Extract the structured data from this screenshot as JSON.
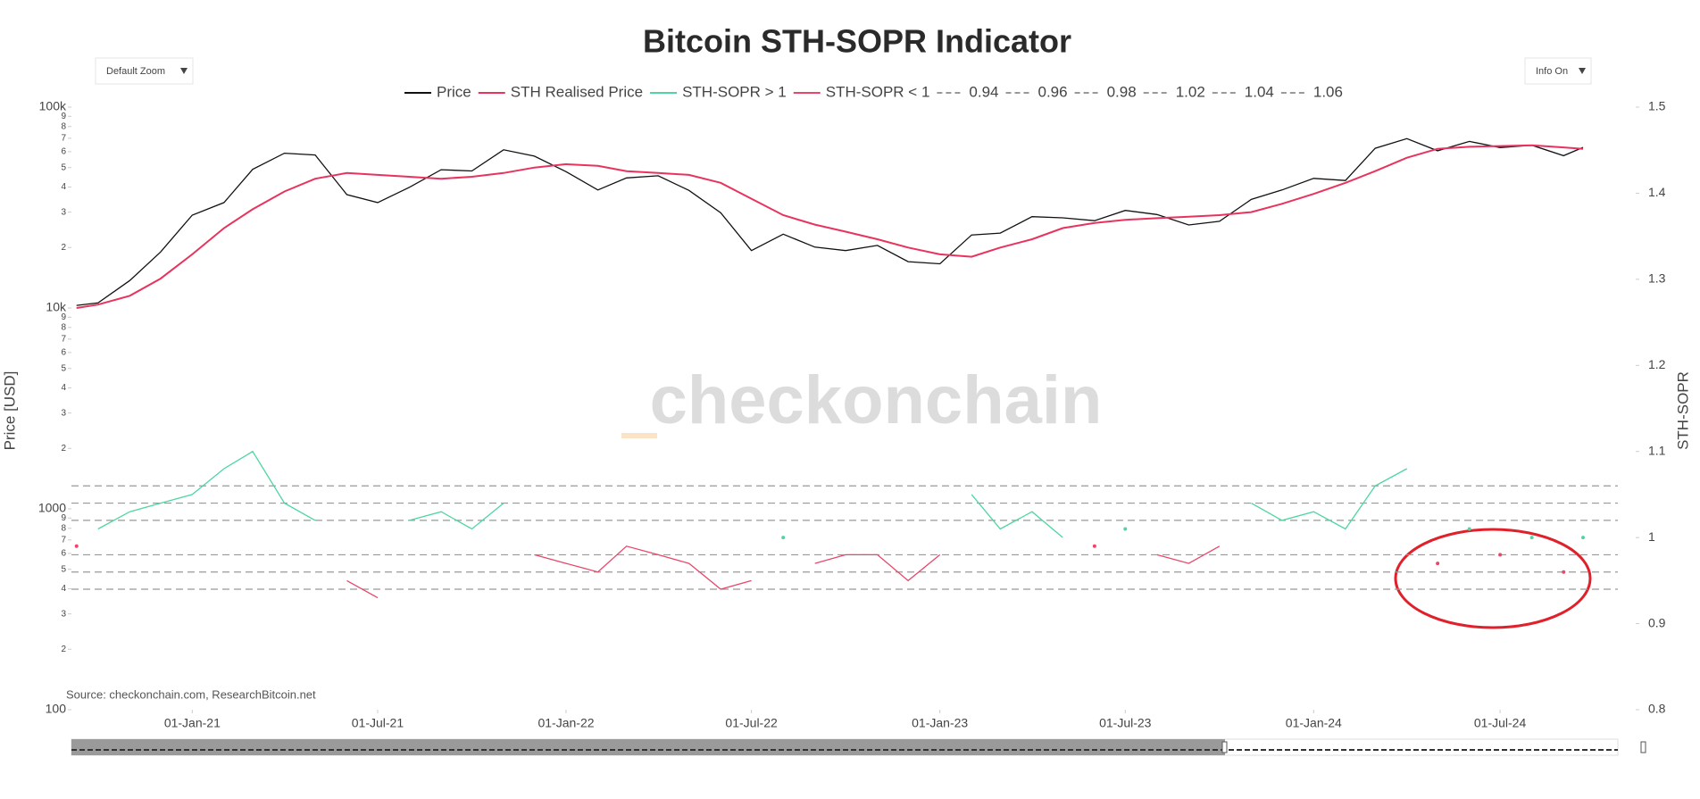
{
  "chart_data": {
    "type": "line",
    "title": "Bitcoin STH-SOPR Indicator",
    "yaxis_title": "Price [USD]",
    "y2axis_title": "STH-SOPR",
    "ylog": true,
    "xlim": [
      "2020-09-05",
      "2024-10-24"
    ],
    "xticks": [
      {
        "value": "2021-01-01",
        "label": "01-Jan-21"
      },
      {
        "value": "2021-07-01",
        "label": "01-Jul-21"
      },
      {
        "value": "2022-01-01",
        "label": "01-Jan-22"
      },
      {
        "value": "2022-07-01",
        "label": "01-Jul-22"
      },
      {
        "value": "2023-01-01",
        "label": "01-Jan-23"
      },
      {
        "value": "2023-07-01",
        "label": "01-Jul-23"
      },
      {
        "value": "2024-01-01",
        "label": "01-Jan-24"
      },
      {
        "value": "2024-07-01",
        "label": "01-Jul-24"
      }
    ],
    "ylim": [
      100,
      100000
    ],
    "yticks": [
      100,
      {
        "value": 200,
        "label": "2"
      },
      {
        "value": 300,
        "label": "3"
      },
      {
        "value": 400,
        "label": "4"
      },
      {
        "value": 500,
        "label": "5"
      },
      {
        "value": 600,
        "label": "6"
      },
      {
        "value": 700,
        "label": "7"
      },
      {
        "value": 800,
        "label": "8"
      },
      {
        "value": 900,
        "label": "9"
      },
      1000,
      {
        "value": 2000,
        "label": "2"
      },
      {
        "value": 3000,
        "label": "3"
      },
      {
        "value": 4000,
        "label": "4"
      },
      {
        "value": 5000,
        "label": "5"
      },
      {
        "value": 6000,
        "label": "6"
      },
      {
        "value": 7000,
        "label": "7"
      },
      {
        "value": 8000,
        "label": "8"
      },
      {
        "value": 9000,
        "label": "9"
      },
      {
        "value": 10000,
        "label": "10k"
      },
      {
        "value": 20000,
        "label": "2"
      },
      {
        "value": 30000,
        "label": "3"
      },
      {
        "value": 40000,
        "label": "4"
      },
      {
        "value": 50000,
        "label": "5"
      },
      {
        "value": 60000,
        "label": "6"
      },
      {
        "value": 70000,
        "label": "7"
      },
      {
        "value": 80000,
        "label": "8"
      },
      {
        "value": 90000,
        "label": "9"
      },
      {
        "value": 100000,
        "label": "100k"
      }
    ],
    "y2lim": [
      0.8,
      1.5
    ],
    "y2ticks": [
      0.8,
      0.9,
      1,
      1.1,
      1.2,
      1.3,
      1.4,
      1.5
    ],
    "x": [
      "2020-09-10",
      "2020-10-01",
      "2020-11-01",
      "2020-12-01",
      "2021-01-01",
      "2021-02-01",
      "2021-03-01",
      "2021-04-01",
      "2021-05-01",
      "2021-06-01",
      "2021-07-01",
      "2021-08-01",
      "2021-09-01",
      "2021-10-01",
      "2021-11-01",
      "2021-12-01",
      "2022-01-01",
      "2022-02-01",
      "2022-03-01",
      "2022-04-01",
      "2022-05-01",
      "2022-06-01",
      "2022-07-01",
      "2022-08-01",
      "2022-09-01",
      "2022-10-01",
      "2022-11-01",
      "2022-12-01",
      "2023-01-01",
      "2023-02-01",
      "2023-03-01",
      "2023-04-01",
      "2023-05-01",
      "2023-06-01",
      "2023-07-01",
      "2023-08-01",
      "2023-09-01",
      "2023-10-01",
      "2023-11-01",
      "2023-12-01",
      "2024-01-01",
      "2024-02-01",
      "2024-03-01",
      "2024-04-01",
      "2024-05-01",
      "2024-06-01",
      "2024-07-01",
      "2024-08-01",
      "2024-09-01",
      "2024-09-20"
    ],
    "series": [
      {
        "name": "Price",
        "color": "#111111",
        "values": [
          10300,
          10600,
          13700,
          19000,
          29000,
          33500,
          49000,
          59000,
          57800,
          36700,
          33500,
          39900,
          48800,
          48100,
          61300,
          57000,
          47700,
          38700,
          44400,
          45500,
          38500,
          29800,
          19300,
          23300,
          20100,
          19300,
          20500,
          17000,
          16600,
          23100,
          23600,
          28500,
          28100,
          27200,
          30600,
          29200,
          25900,
          27000,
          34700,
          38700,
          44200,
          43100,
          62400,
          69700,
          60600,
          67500,
          62900,
          64600,
          57300,
          63000
        ]
      },
      {
        "name": "STH Realised Price",
        "color": "#e8335d",
        "values": [
          10000,
          10400,
          11500,
          14000,
          18500,
          25000,
          31000,
          38000,
          44000,
          47000,
          46000,
          45000,
          44000,
          45000,
          47000,
          50000,
          52000,
          51000,
          48000,
          47000,
          46000,
          42000,
          35000,
          29000,
          26000,
          24000,
          22000,
          20000,
          18500,
          18000,
          20000,
          22000,
          25000,
          26500,
          27500,
          28000,
          28500,
          29000,
          30000,
          33000,
          37000,
          42000,
          48000,
          56000,
          62000,
          63500,
          64000,
          64500,
          63000,
          62000
        ]
      },
      {
        "name": "STH-SOPR > 1",
        "color": "#4fd6a0",
        "axis": "y2",
        "values": [
          null,
          1.01,
          1.03,
          1.04,
          1.05,
          1.08,
          1.1,
          1.04,
          1.02,
          null,
          null,
          1.02,
          1.03,
          1.01,
          1.04,
          null,
          null,
          null,
          null,
          null,
          null,
          null,
          null,
          1.0,
          null,
          null,
          null,
          null,
          null,
          1.05,
          1.01,
          1.03,
          1.0,
          null,
          1.01,
          null,
          null,
          null,
          1.04,
          1.02,
          1.03,
          1.01,
          1.06,
          1.08,
          null,
          1.01,
          null,
          1.0,
          null,
          1.0
        ]
      },
      {
        "name": "STH-SOPR < 1",
        "color": "#e8476a",
        "axis": "y2",
        "values": [
          0.99,
          null,
          null,
          null,
          null,
          null,
          null,
          null,
          null,
          0.95,
          0.93,
          null,
          null,
          null,
          null,
          0.98,
          0.97,
          0.96,
          0.99,
          0.98,
          0.97,
          0.94,
          0.95,
          null,
          0.97,
          0.98,
          0.98,
          0.95,
          0.98,
          null,
          null,
          null,
          null,
          0.99,
          null,
          0.98,
          0.97,
          0.99,
          null,
          null,
          null,
          null,
          null,
          null,
          0.97,
          null,
          0.98,
          null,
          0.96,
          null
        ]
      }
    ],
    "reference_lines": [
      {
        "name": "0.94",
        "value": 0.94,
        "color": "#999999"
      },
      {
        "name": "0.96",
        "value": 0.96,
        "color": "#999999"
      },
      {
        "name": "0.98",
        "value": 0.98,
        "color": "#999999"
      },
      {
        "name": "1.02",
        "value": 1.02,
        "color": "#999999"
      },
      {
        "name": "1.04",
        "value": 1.04,
        "color": "#999999"
      },
      {
        "name": "1.06",
        "value": 1.06,
        "color": "#999999"
      }
    ]
  },
  "controls": {
    "zoom": "Default Zoom",
    "info": "Info On"
  },
  "watermark": "checkonchain",
  "source": "Source: checkonchain.com, ResearchBitcoin.net"
}
